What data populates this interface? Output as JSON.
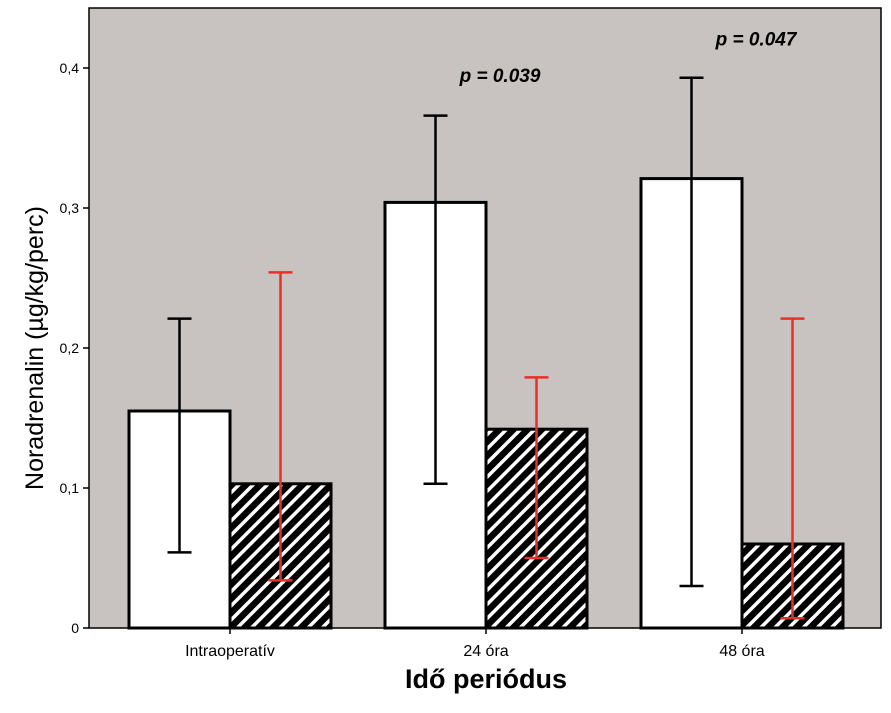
{
  "chart_data": {
    "type": "bar",
    "categories": [
      "Intraoperatív",
      "24 óra",
      "48 óra"
    ],
    "series": [
      {
        "fill": "#ffffff",
        "pattern": "none",
        "error_color": "#000000",
        "values": [
          0.155,
          0.304,
          0.321
        ],
        "error_low": [
          0.054,
          0.103,
          0.03
        ],
        "error_high": [
          0.221,
          0.366,
          0.393
        ]
      },
      {
        "fill": "#000000",
        "pattern": "diagonal-hatch",
        "error_color": "#e8302a",
        "values": [
          0.103,
          0.142,
          0.06
        ],
        "error_low": [
          0.034,
          0.05,
          0.007
        ],
        "error_high": [
          0.254,
          0.179,
          0.221
        ]
      }
    ],
    "xlabel": "Idő periódus",
    "ylabel": "Noradrenalin (µg/kg/perc)",
    "ylim": [
      0,
      0.4
    ],
    "yticks": [
      0,
      0.1,
      0.2,
      0.3,
      0.4
    ],
    "ytick_labels": [
      "0",
      "0,1",
      "0,2",
      "0,3",
      "0,4"
    ],
    "annotations": [
      {
        "category": "24 óra",
        "text": "p = 0.039",
        "y": 0.39
      },
      {
        "category": "48 óra",
        "text": "p = 0.047",
        "y": 0.416
      }
    ],
    "grid": false,
    "plot_background": "#c8c3c0"
  }
}
